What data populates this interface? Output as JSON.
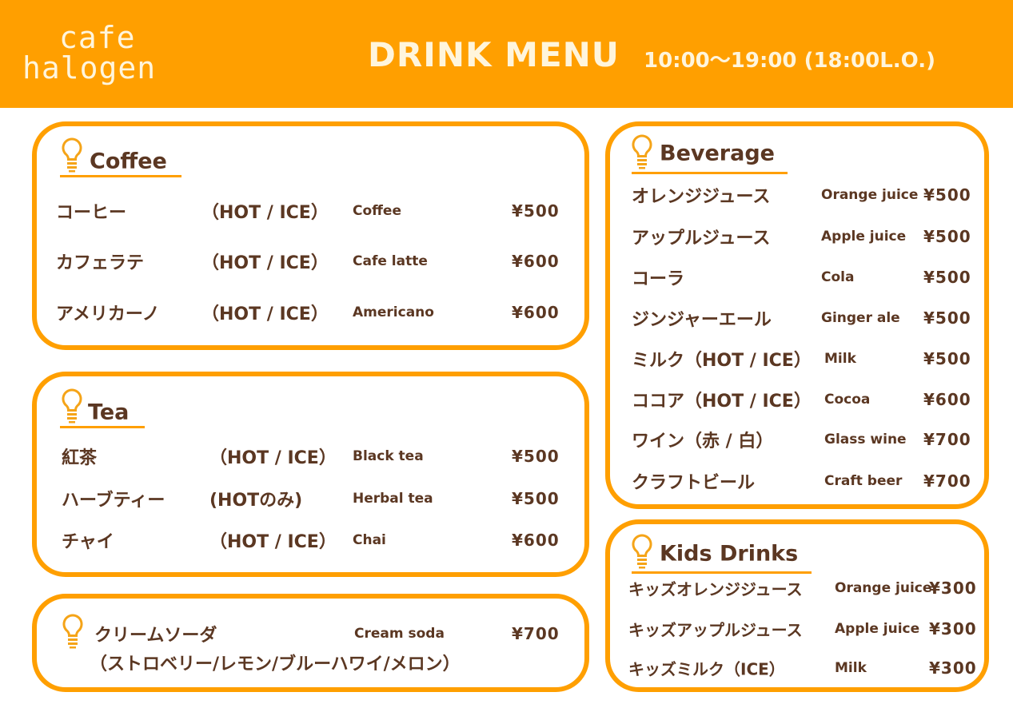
{
  "header": {
    "logo": [
      "cafe",
      "halogen"
    ],
    "title": "DRINK MENU",
    "hours": "10:00〜19:00 (18:00L.O.)"
  },
  "colors": {
    "accent": "#ff9f00",
    "text": "#5b3722",
    "header_text": "#fff5dc"
  },
  "coffee": {
    "title": "Coffee",
    "icon": "lightbulb-icon",
    "items": [
      {
        "jp": "コーヒー",
        "opt": "（HOT / ICE）",
        "en": "Coffee",
        "price": "¥500"
      },
      {
        "jp": "カフェラテ",
        "opt": "（HOT / ICE）",
        "en": "Cafe latte",
        "price": "¥600"
      },
      {
        "jp": "アメリカーノ",
        "opt": "（HOT / ICE）",
        "en": "Americano",
        "price": "¥600"
      }
    ]
  },
  "tea": {
    "title": "Tea",
    "icon": "lightbulb-icon",
    "items": [
      {
        "jp": "紅茶",
        "opt": "（HOT / ICE）",
        "en": "Black tea",
        "price": "¥500"
      },
      {
        "jp": "ハーブティー",
        "opt": "(HOTのみ)",
        "en": "Herbal tea",
        "price": "¥500"
      },
      {
        "jp": "チャイ",
        "opt": "（HOT / ICE）",
        "en": "Chai",
        "price": "¥600"
      }
    ]
  },
  "cream_soda": {
    "jp": "クリームソーダ",
    "en": "Cream soda",
    "price": "¥700",
    "flavors": "（ストロベリー/レモン/ブルーハワイ/メロン）",
    "icon": "lightbulb-icon"
  },
  "beverage": {
    "title": "Beverage",
    "icon": "lightbulb-icon",
    "items": [
      {
        "jp": "オレンジジュース",
        "en": "Orange juice",
        "price": "¥500"
      },
      {
        "jp": "アップルジュース",
        "en": "Apple juice",
        "price": "¥500"
      },
      {
        "jp": "コーラ",
        "en": "Cola",
        "price": "¥500"
      },
      {
        "jp": "ジンジャーエール",
        "en": "Ginger ale",
        "price": "¥500"
      },
      {
        "jp": "ミルク（HOT / ICE）",
        "en": "Milk",
        "price": "¥500"
      },
      {
        "jp": "ココア（HOT / ICE）",
        "en": "Cocoa",
        "price": "¥600"
      },
      {
        "jp": "ワイン（赤 / 白）",
        "en": "Glass wine",
        "price": "¥700"
      },
      {
        "jp": "クラフトビール",
        "en": "Craft beer",
        "price": "¥700"
      }
    ]
  },
  "kids": {
    "title": "Kids Drinks",
    "icon": "lightbulb-icon",
    "items": [
      {
        "jp": "キッズオレンジジュース",
        "en": "Orange juice",
        "price": "¥300"
      },
      {
        "jp": "キッズアップルジュース",
        "en": "Apple juice",
        "price": "¥300"
      },
      {
        "jp": "キッズミルク（ICE）",
        "en": "Milk",
        "price": "¥300"
      }
    ]
  }
}
